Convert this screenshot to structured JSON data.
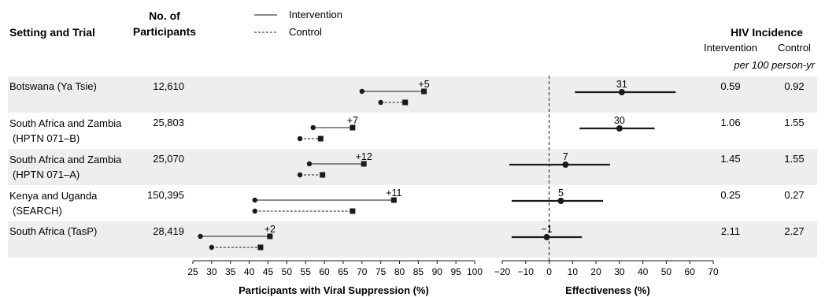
{
  "headers": {
    "setting": "Setting and Trial",
    "participants_line1": "No. of",
    "participants_line2": "Participants",
    "incidence": "HIV Incidence",
    "intervention": "Intervention",
    "control": "Control",
    "unit": "per 100 person-yr"
  },
  "legend": {
    "intervention": "Intervention",
    "control": "Control"
  },
  "colors": {
    "band": "#eeeeee",
    "ink": "#1a1a1a"
  },
  "chart_data": [
    {
      "type": "dumbbell",
      "title": "",
      "xlabel": "Participants with Viral Suppression (%)",
      "xlim": [
        25,
        100
      ],
      "xticks": [
        25,
        30,
        35,
        40,
        45,
        50,
        55,
        60,
        65,
        70,
        75,
        80,
        85,
        90,
        95,
        100
      ],
      "series": [
        {
          "name": "Intervention",
          "style": "solid"
        },
        {
          "name": "Control",
          "style": "dashed"
        }
      ],
      "rows": [
        {
          "setting_line1": "Botswana (Ya Tsie)",
          "setting_line2": "",
          "participants": "12,610",
          "intervention": {
            "start": 70,
            "end": 86.5
          },
          "control": {
            "start": 75,
            "end": 81.5
          },
          "diff_label": "+5"
        },
        {
          "setting_line1": "South Africa and Zambia",
          "setting_line2": "(HPTN 071–B)",
          "participants": "25,803",
          "intervention": {
            "start": 57,
            "end": 67.5
          },
          "control": {
            "start": 53.5,
            "end": 59
          },
          "diff_label": "+7"
        },
        {
          "setting_line1": "South Africa and Zambia",
          "setting_line2": "(HPTN 071–A)",
          "participants": "25,070",
          "intervention": {
            "start": 56,
            "end": 70.5
          },
          "control": {
            "start": 53.5,
            "end": 59.5
          },
          "diff_label": "+12"
        },
        {
          "setting_line1": "Kenya and Uganda",
          "setting_line2": "(SEARCH)",
          "participants": "150,395",
          "intervention": {
            "start": 41.5,
            "end": 78.5
          },
          "control": {
            "start": 41.5,
            "end": 67.5
          },
          "diff_label": "+11"
        },
        {
          "setting_line1": "South Africa (TasP)",
          "setting_line2": "",
          "participants": "28,419",
          "intervention": {
            "start": 27,
            "end": 45.5
          },
          "control": {
            "start": 30,
            "end": 43
          },
          "diff_label": "+2"
        }
      ]
    },
    {
      "type": "forest",
      "title": "",
      "xlabel": "Effectiveness (%)",
      "xlim": [
        -20,
        70
      ],
      "xticks": [
        -20,
        -10,
        0,
        10,
        20,
        30,
        40,
        50,
        60,
        70
      ],
      "xtick_labels": [
        "−20",
        "−10",
        "0",
        "10",
        "20",
        "30",
        "40",
        "50",
        "60",
        "70"
      ],
      "reference_line": 0,
      "estimates": [
        {
          "label": "31",
          "point": 31,
          "ci": [
            11,
            54
          ]
        },
        {
          "label": "30",
          "point": 30,
          "ci": [
            13,
            45
          ]
        },
        {
          "label": "7",
          "point": 7,
          "ci": [
            -17,
            26
          ]
        },
        {
          "label": "5",
          "point": 5,
          "ci": [
            -16,
            23
          ]
        },
        {
          "label": "−1",
          "point": -1,
          "ci": [
            -16,
            14
          ]
        }
      ]
    },
    {
      "type": "table",
      "title": "",
      "columns": [
        "Intervention",
        "Control"
      ],
      "rows": [
        [
          "0.59",
          "0.92"
        ],
        [
          "1.06",
          "1.55"
        ],
        [
          "1.45",
          "1.55"
        ],
        [
          "0.25",
          "0.27"
        ],
        [
          "2.11",
          "2.27"
        ]
      ]
    }
  ]
}
